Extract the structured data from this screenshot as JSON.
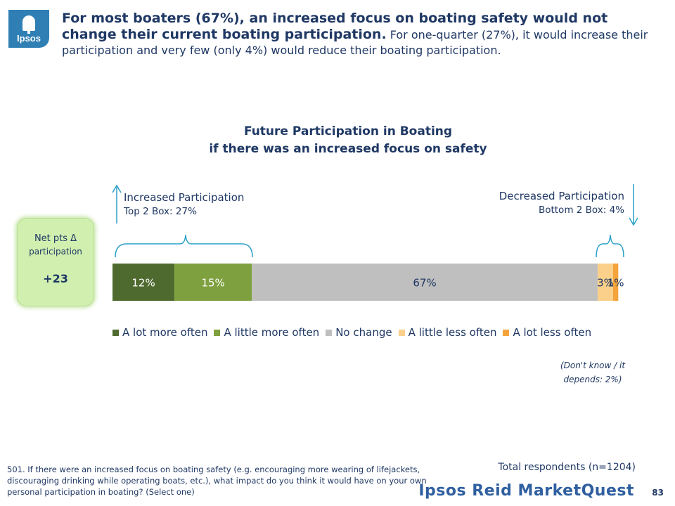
{
  "logo": {
    "text": "Ipsos"
  },
  "headline": {
    "bold": "For most boaters (67%), an increased focus on boating safety would not change their current boating participation.",
    "rest": " For one-quarter  (27%), it would increase their participation and very few (only 4%) would reduce their boating participation."
  },
  "chart_title": {
    "line1": "Future Participation in Boating",
    "line2": "if there was an increased focus on safety"
  },
  "callouts": {
    "increase_title": "Increased  Participation",
    "increase_sub": "Top 2 Box: 27%",
    "decrease_title": "Decreased  Participation",
    "decrease_sub": "Bottom 2 Box: 4%"
  },
  "net_box": {
    "label": "Net pts Δ",
    "label2": "participation",
    "value": "+23"
  },
  "chart_data": {
    "type": "bar",
    "orientation": "horizontal",
    "stacked": true,
    "title": "Future Participation in Boating if there was an increased focus on safety",
    "xlim": [
      0,
      100
    ],
    "legend_position": "bottom",
    "series": [
      {
        "name": "A lot more often",
        "value": 12,
        "label": "12%",
        "color": "#4e6a2f",
        "label_color": "#ffffff"
      },
      {
        "name": "A little more often",
        "value": 15,
        "label": "15%",
        "color": "#7ea03f",
        "label_color": "#ffffff"
      },
      {
        "name": "No change",
        "value": 67,
        "label": "67%",
        "color": "#bfbfbf",
        "label_color": "#1f3864"
      },
      {
        "name": "A little less often",
        "value": 3,
        "label": "3%",
        "color": "#fad08a",
        "label_color": "#1f3864"
      },
      {
        "name": "A lot less often",
        "value": 1,
        "label": "1%",
        "color": "#f3a43a",
        "label_color": "#1f3864"
      }
    ]
  },
  "dk_note": "(Don't know / it depends: 2%)",
  "question": "501. If there were an increased focus on boating safety (e.g. encouraging more wearing of lifejackets, discouraging drinking while operating boats, etc.), what impact do you think it would have on your own personal participation in boating? (Select one)",
  "respondents": "Total respondents (n=1204)",
  "brand": "Ipsos Reid MarketQuest",
  "page_number": "83",
  "colors": {
    "text": "#1f3864",
    "arrow": "#2aa0c8",
    "net_box": "#d1f0b0"
  }
}
